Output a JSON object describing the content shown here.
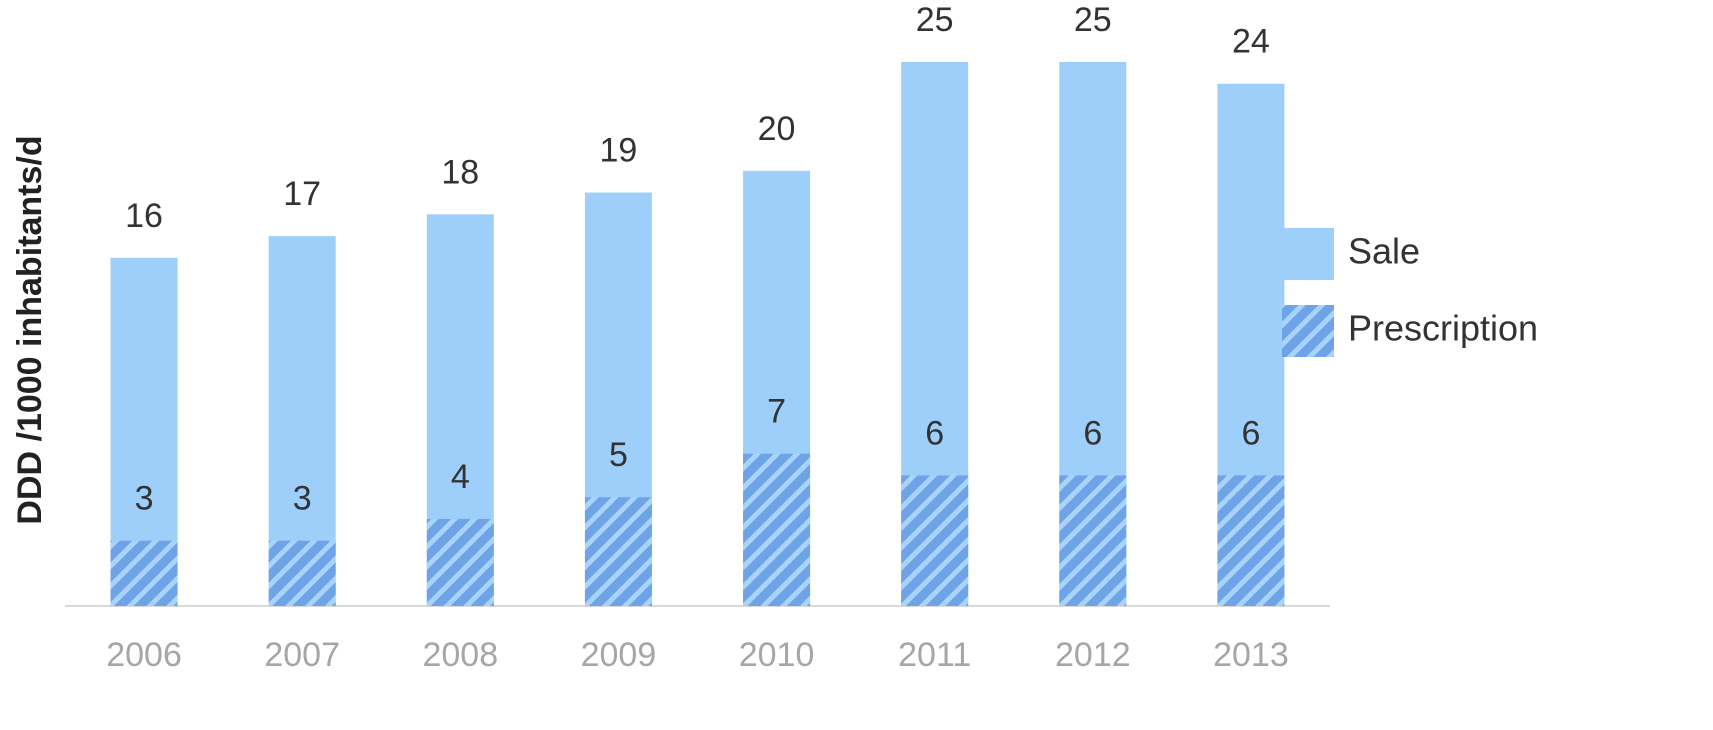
{
  "chart_data": {
    "type": "overlapped_bar",
    "y_label": "DDD /1000 inhabitants/d",
    "categories": [
      "2006",
      "2007",
      "2008",
      "2009",
      "2010",
      "2011",
      "2012",
      "2013"
    ],
    "series": [
      {
        "name": "Sale",
        "color": "#9ecffb",
        "hatch": false,
        "values": [
          16,
          17,
          18,
          19,
          20,
          25,
          25,
          24
        ]
      },
      {
        "name": "Prescription",
        "color": "#6fa3e8",
        "hatch": true,
        "values": [
          3,
          3,
          4,
          5,
          7,
          6,
          6,
          6
        ]
      }
    ],
    "ylim": [
      0,
      25
    ],
    "legend": "right"
  }
}
